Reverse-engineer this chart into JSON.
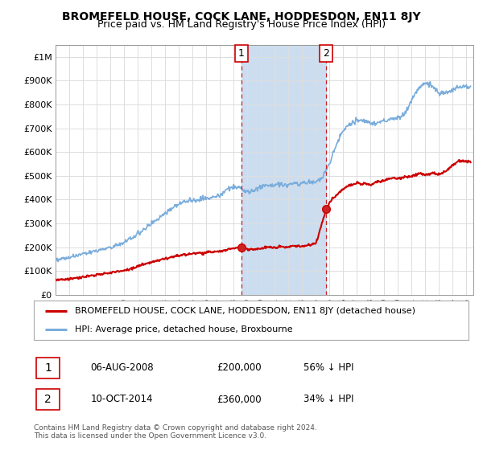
{
  "title": "BROMEFELD HOUSE, COCK LANE, HODDESDON, EN11 8JY",
  "subtitle": "Price paid vs. HM Land Registry's House Price Index (HPI)",
  "hpi_color": "#7aaddc",
  "price_color": "#cc0000",
  "sale1_date": 2008.58,
  "sale1_price": 200000,
  "sale2_date": 2014.77,
  "sale2_price": 360000,
  "xmin": 1995,
  "xmax": 2025.5,
  "ymin": 0,
  "ymax": 1050000,
  "yticks": [
    0,
    100000,
    200000,
    300000,
    400000,
    500000,
    600000,
    700000,
    800000,
    900000,
    1000000
  ],
  "ytick_labels": [
    "£0",
    "£100K",
    "£200K",
    "£300K",
    "£400K",
    "£500K",
    "£600K",
    "£700K",
    "£800K",
    "£900K",
    "£1M"
  ],
  "legend_line1": "BROMEFELD HOUSE, COCK LANE, HODDESDON, EN11 8JY (detached house)",
  "legend_line2": "HPI: Average price, detached house, Broxbourne",
  "sale1_label_date": "06-AUG-2008",
  "sale1_label_price": "£200,000",
  "sale1_label_pct": "56% ↓ HPI",
  "sale2_label_date": "10-OCT-2014",
  "sale2_label_price": "£360,000",
  "sale2_label_pct": "34% ↓ HPI",
  "footnote": "Contains HM Land Registry data © Crown copyright and database right 2024.\nThis data is licensed under the Open Government Licence v3.0.",
  "background_color": "#ffffff",
  "grid_color": "#dddddd",
  "span_color": "#ccddf0"
}
